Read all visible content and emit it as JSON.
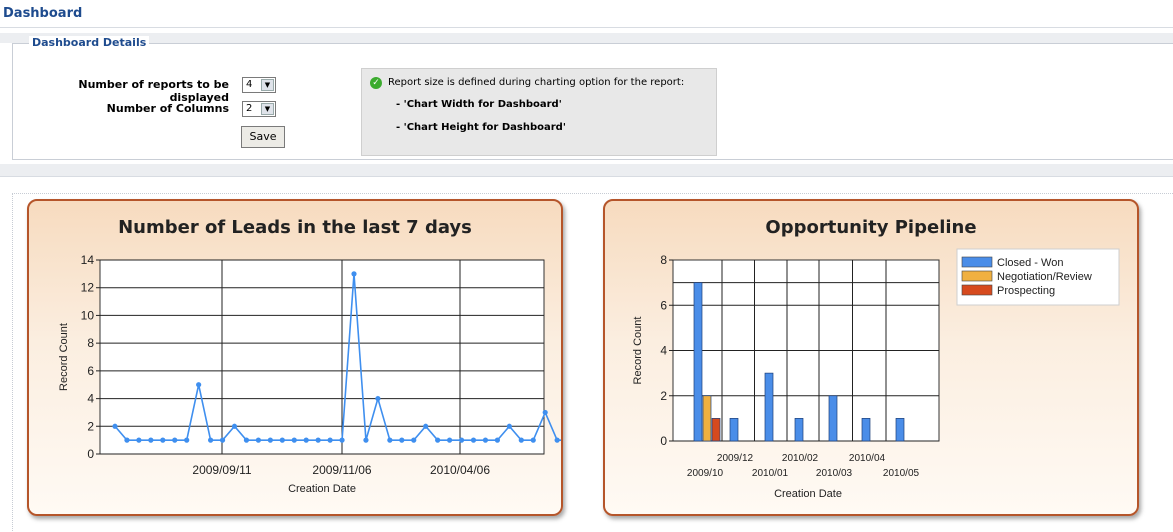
{
  "page_title": "Dashboard",
  "details": {
    "legend": "Dashboard Details",
    "reports_label": "Number of reports to be displayed",
    "reports_value": "4",
    "columns_label": "Number of Columns",
    "columns_value": "2",
    "save_label": "Save",
    "info_text": "Report size is defined during charting option for the report:",
    "info_item1": "- 'Chart Width for Dashboard'",
    "info_item2": "- 'Chart Height for Dashboard'"
  },
  "colors": {
    "accent": "#1e4b8e",
    "card_border": "#b5552a",
    "line": "#3f8fef"
  },
  "chart_data": [
    {
      "type": "line",
      "title": "Number of Leads in the last 7 days",
      "xlabel": "Creation Date",
      "ylabel": "Record Count",
      "ylim": [
        0,
        14
      ],
      "yticks": [
        "0",
        "2",
        "4",
        "6",
        "8",
        "10",
        "12",
        "14"
      ],
      "xtick_labels": [
        "2009/09/11",
        "2009/11/06",
        "2010/04/06"
      ],
      "grid": true,
      "series": [
        {
          "values": [
            2,
            1,
            1,
            1,
            1,
            1,
            1,
            5,
            1,
            1,
            2,
            1,
            1,
            1,
            1,
            1,
            1,
            1,
            1,
            1,
            13,
            1,
            4,
            1,
            1,
            1,
            2,
            1,
            1,
            1,
            1,
            1,
            1,
            2,
            1,
            1,
            3,
            1,
            1
          ]
        }
      ]
    },
    {
      "type": "bar",
      "title": "Opportunity Pipeline",
      "xlabel": "Creation Date",
      "ylabel": "Record Count",
      "ylim": [
        0,
        8
      ],
      "yticks": [
        "0",
        "2",
        "4",
        "6",
        "8"
      ],
      "categories": [
        "2009/10",
        "2009/12",
        "2010/01",
        "2010/02",
        "2010/03",
        "2010/04",
        "2010/05"
      ],
      "legend": "top-right",
      "grid": true,
      "series": [
        {
          "name": "Closed - Won",
          "color": "#4a8de8",
          "values": [
            7,
            1,
            3,
            1,
            2,
            1,
            1
          ]
        },
        {
          "name": "Negotiation/Review",
          "color": "#f0b040",
          "values": [
            2,
            0,
            0,
            0,
            0,
            0,
            0
          ]
        },
        {
          "name": "Prospecting",
          "color": "#d64a1e",
          "values": [
            1,
            0,
            0,
            0,
            0,
            0,
            0
          ]
        }
      ]
    }
  ]
}
